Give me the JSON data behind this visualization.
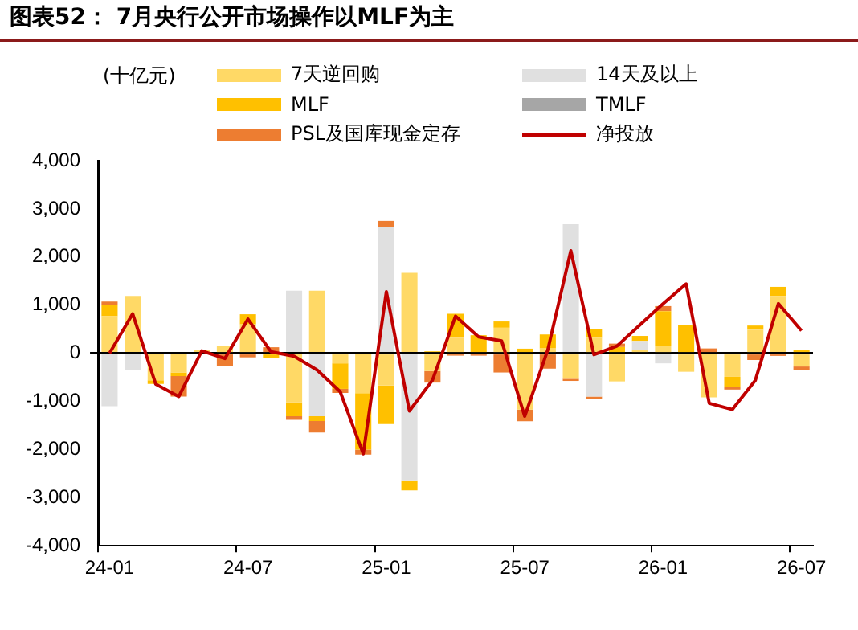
{
  "chart_data": {
    "type": "bar",
    "stacked": true,
    "title": "图表52： 7月央行公开市场操作以MLF为主",
    "ylabel": "(十亿元)",
    "categories": [
      "24-01",
      null,
      null,
      null,
      null,
      null,
      "24-07",
      null,
      null,
      null,
      null,
      null,
      "25-01",
      null,
      null,
      null,
      null,
      null,
      "25-07",
      null,
      null,
      null,
      null,
      null,
      "26-01",
      null,
      null,
      null,
      null,
      null,
      "26-07"
    ],
    "series": [
      {
        "name": "7天逆回购",
        "color": "#ffd966",
        "values": [
          770,
          1190,
          -560,
          -400,
          75,
          150,
          600,
          null,
          -1020,
          1300,
          -210,
          -830,
          -670,
          1670,
          -370,
          320,
          null,
          530,
          -1170,
          100,
          -530,
          320,
          -585,
          75,
          150,
          -385,
          -915,
          -490,
          490,
          1190,
          -275
        ]
      },
      {
        "name": "14天及以上",
        "color": "#e0e0e0",
        "values": [
          -1100,
          -350,
          null,
          null,
          null,
          null,
          null,
          null,
          1300,
          -1310,
          null,
          null,
          2620,
          -2640,
          null,
          null,
          null,
          null,
          null,
          null,
          2680,
          -900,
          null,
          180,
          -210,
          null,
          null,
          null,
          null,
          null,
          null
        ]
      },
      {
        "name": "MLF",
        "color": "#ffc000",
        "values": [
          230,
          null,
          -75,
          -75,
          null,
          null,
          210,
          -100,
          -290,
          -100,
          -530,
          -1170,
          -800,
          -210,
          40,
          500,
          375,
          130,
          95,
          290,
          null,
          180,
          130,
          105,
          725,
          585,
          null,
          -210,
          85,
          190,
          75
        ]
      },
      {
        "name": "TMLF",
        "color": "#a6a6a6",
        "values": [
          null,
          null,
          null,
          null,
          null,
          null,
          null,
          null,
          null,
          null,
          null,
          null,
          null,
          null,
          null,
          null,
          null,
          null,
          null,
          null,
          null,
          null,
          null,
          null,
          null,
          null,
          null,
          null,
          null,
          null,
          null
        ]
      },
      {
        "name": "PSL及国库现金定存",
        "color": "#ed7d31",
        "values": [
          75,
          null,
          null,
          -425,
          null,
          -265,
          -85,
          125,
          -75,
          -235,
          -85,
          -105,
          130,
          null,
          -240,
          -50,
          -50,
          -400,
          -245,
          -320,
          -45,
          -45,
          70,
          null,
          105,
          null,
          100,
          -55,
          -140,
          -55,
          -75
        ]
      },
      {
        "name": "净投放",
        "type": "line",
        "color": "#c00000",
        "values": [
          0,
          820,
          -640,
          -900,
          50,
          -110,
          710,
          30,
          -60,
          -350,
          -800,
          -2090,
          1280,
          -1200,
          -560,
          770,
          340,
          255,
          -1310,
          70,
          2130,
          -30,
          150,
          590,
          1030,
          1440,
          -1040,
          -1170,
          -560,
          1030,
          470
        ]
      }
    ],
    "ylim": [
      -4000,
      4000
    ],
    "yticks": [
      {
        "value": -4000,
        "label": "-4,000"
      },
      {
        "value": -3000,
        "label": "-3,000"
      },
      {
        "value": -2000,
        "label": "-2,000"
      },
      {
        "value": -1000,
        "label": "-1,000"
      },
      0,
      {
        "value": 1000,
        "label": "1,000"
      },
      {
        "value": 2000,
        "label": "2,000"
      },
      {
        "value": 3000,
        "label": "3,000"
      },
      {
        "value": 4000,
        "label": "4,000"
      }
    ],
    "legend": "top",
    "marker": "none"
  }
}
